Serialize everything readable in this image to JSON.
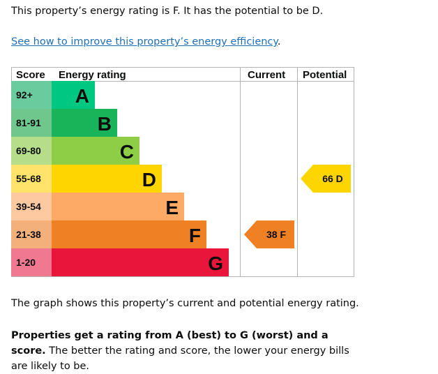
{
  "intro_text": "This property’s energy rating is F. It has the potential to be D.",
  "improve_link": "See how to improve this property’s energy efficiency",
  "improve_link_suffix": ".",
  "table": {
    "headers": {
      "score": "Score",
      "energy_rating": "Energy rating",
      "current": "Current",
      "potential": "Potential"
    },
    "bands": [
      {
        "score": "92+",
        "letter": "A",
        "color": "#00c781",
        "score_bg": "#6acb9f"
      },
      {
        "score": "81-91",
        "letter": "B",
        "color": "#19b459",
        "score_bg": "#6fc78e"
      },
      {
        "score": "69-80",
        "letter": "C",
        "color": "#8dce46",
        "score_bg": "#b6dd8a"
      },
      {
        "score": "55-68",
        "letter": "D",
        "color": "#ffd500",
        "score_bg": "#ffe36a"
      },
      {
        "score": "39-54",
        "letter": "E",
        "color": "#fcaa65",
        "score_bg": "#fdc9a0"
      },
      {
        "score": "21-38",
        "letter": "F",
        "color": "#ef8023",
        "score_bg": "#f4b07b"
      },
      {
        "score": "1-20",
        "letter": "G",
        "color": "#e9153b",
        "score_bg": "#f07890"
      }
    ],
    "current": {
      "label": "38 F",
      "band": "F",
      "color": "#ef8023"
    },
    "potential": {
      "label": "66 D",
      "band": "D",
      "color": "#ffd500"
    }
  },
  "footer_text": "The graph shows this property’s current and potential energy rating.",
  "rating_note_bold": "Properties get a rating from A (best) to G (worst) and a score.",
  "rating_note_rest": " The better the rating and score, the lower your energy bills are likely to be."
}
